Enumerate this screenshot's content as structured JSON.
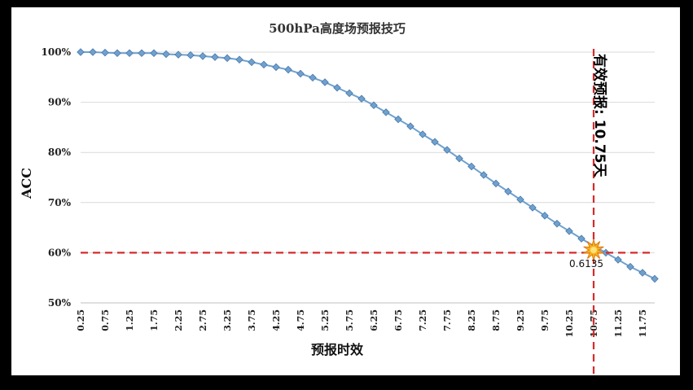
{
  "chart_data": {
    "type": "line",
    "title": "500hPa高度场预报技巧",
    "xlabel": "预报时效",
    "ylabel": "ACC",
    "x_tick_labels": [
      "0.25",
      "0.75",
      "1.25",
      "1.75",
      "2.25",
      "2.75",
      "3.25",
      "3.75",
      "4.25",
      "4.75",
      "5.25",
      "5.75",
      "6.25",
      "6.75",
      "7.25",
      "7.75",
      "8.25",
      "8.75",
      "9.25",
      "9.75",
      "10.25",
      "10.75",
      "11.25",
      "11.75"
    ],
    "y_tick_labels": [
      "50%",
      "60%",
      "70%",
      "80%",
      "90%",
      "100%"
    ],
    "ylim": [
      0.5,
      1.0
    ],
    "grid": true,
    "series": [
      {
        "x": [
          0.25,
          0.5,
          0.75,
          1.0,
          1.25,
          1.5,
          1.75,
          2.0,
          2.25,
          2.5,
          2.75,
          3.0,
          3.25,
          3.5,
          3.75,
          4.0,
          4.25,
          4.5,
          4.75,
          5.0,
          5.25,
          5.5,
          5.75,
          6.0,
          6.25,
          6.5,
          6.75,
          7.0,
          7.25,
          7.5,
          7.75,
          8.0,
          8.25,
          8.5,
          8.75,
          9.0,
          9.25,
          9.5,
          9.75,
          10.0,
          10.25,
          10.5,
          10.75,
          11.0,
          11.25,
          11.5,
          11.75,
          12.0
        ],
        "values": [
          1.0,
          1.0,
          0.999,
          0.998,
          0.998,
          0.998,
          0.998,
          0.996,
          0.995,
          0.994,
          0.992,
          0.99,
          0.988,
          0.985,
          0.98,
          0.975,
          0.97,
          0.965,
          0.957,
          0.949,
          0.94,
          0.929,
          0.918,
          0.907,
          0.894,
          0.88,
          0.866,
          0.852,
          0.836,
          0.821,
          0.805,
          0.788,
          0.772,
          0.755,
          0.738,
          0.722,
          0.706,
          0.69,
          0.674,
          0.658,
          0.643,
          0.628,
          0.6135,
          0.6,
          0.586,
          0.572,
          0.56,
          0.548
        ],
        "color": "#6fa1cf"
      }
    ],
    "threshold_y": 0.6,
    "threshold_x": 10.75,
    "threshold_color": "#d62a2a",
    "marker_label": "0.6135",
    "annotation": "有效预报: 10.75天"
  }
}
